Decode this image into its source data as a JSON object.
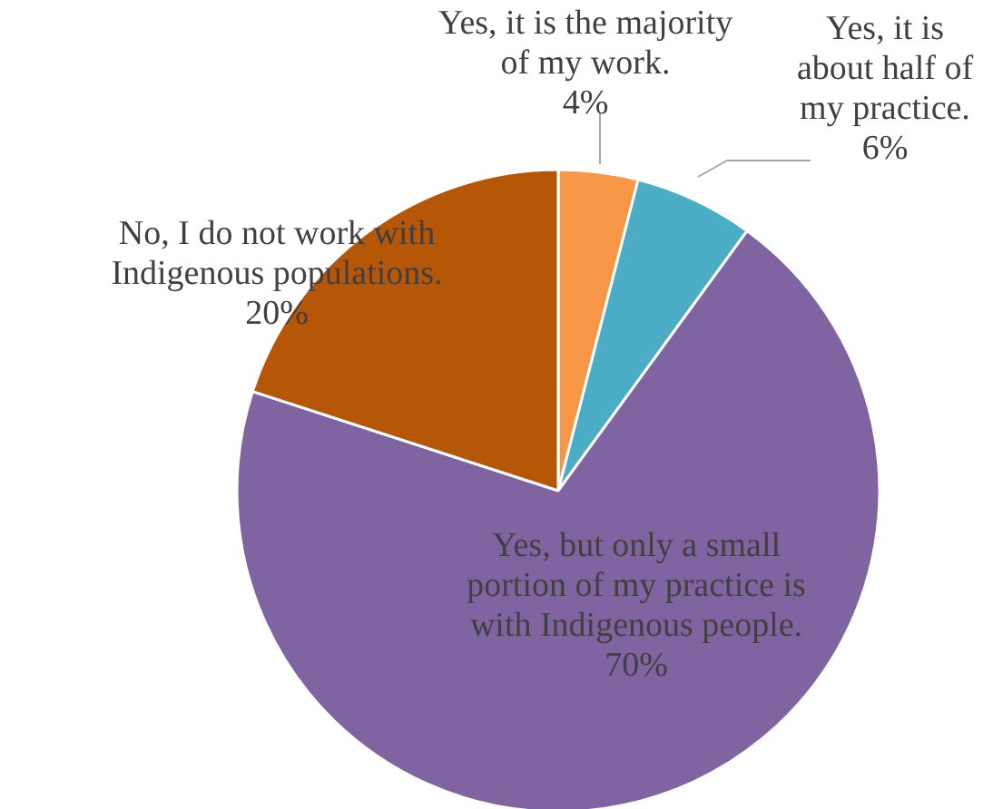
{
  "chart_data": {
    "type": "pie",
    "categories": [
      "Yes, it is the majority of my work.",
      "Yes, it is about half of my practice.",
      "Yes, but only a small portion of my practice is with Indigenous people.",
      "No, I do not work with Indigenous populations."
    ],
    "values": [
      4,
      6,
      70,
      20
    ],
    "colors": [
      "#f79646",
      "#4bacc6",
      "#8064a2",
      "#b65708"
    ],
    "value_labels": [
      "4%",
      "6%",
      "70%",
      "20%"
    ]
  }
}
